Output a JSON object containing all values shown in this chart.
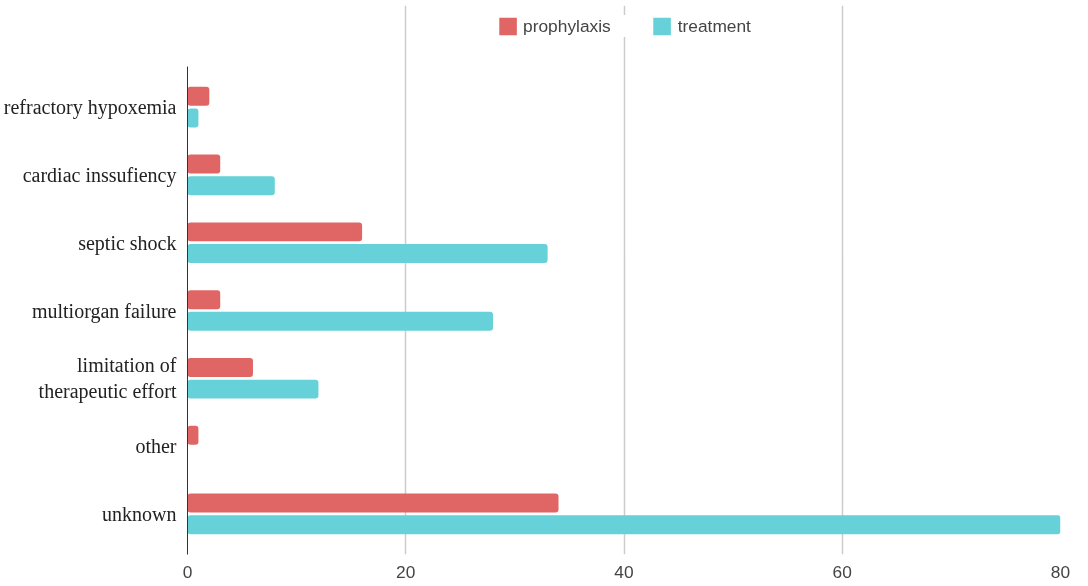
{
  "chart_data": {
    "type": "bar",
    "orientation": "horizontal",
    "categories": [
      "refractory hypoxemia",
      "cardiac inssufiency",
      "septic shock",
      "multiorgan failure",
      "limitation of therapeutic effort",
      "other",
      "unknown"
    ],
    "series": [
      {
        "name": "prophylaxis",
        "color": "#e06666",
        "values": [
          2,
          3,
          16,
          3,
          6,
          1,
          34
        ]
      },
      {
        "name": "treatment",
        "color": "#66d1d8",
        "values": [
          1,
          8,
          33,
          28,
          12,
          0,
          80
        ]
      }
    ],
    "xlim": [
      0,
      80
    ],
    "xticks": [
      0,
      20,
      40,
      60,
      80
    ],
    "grid": "x",
    "legend": "top"
  }
}
